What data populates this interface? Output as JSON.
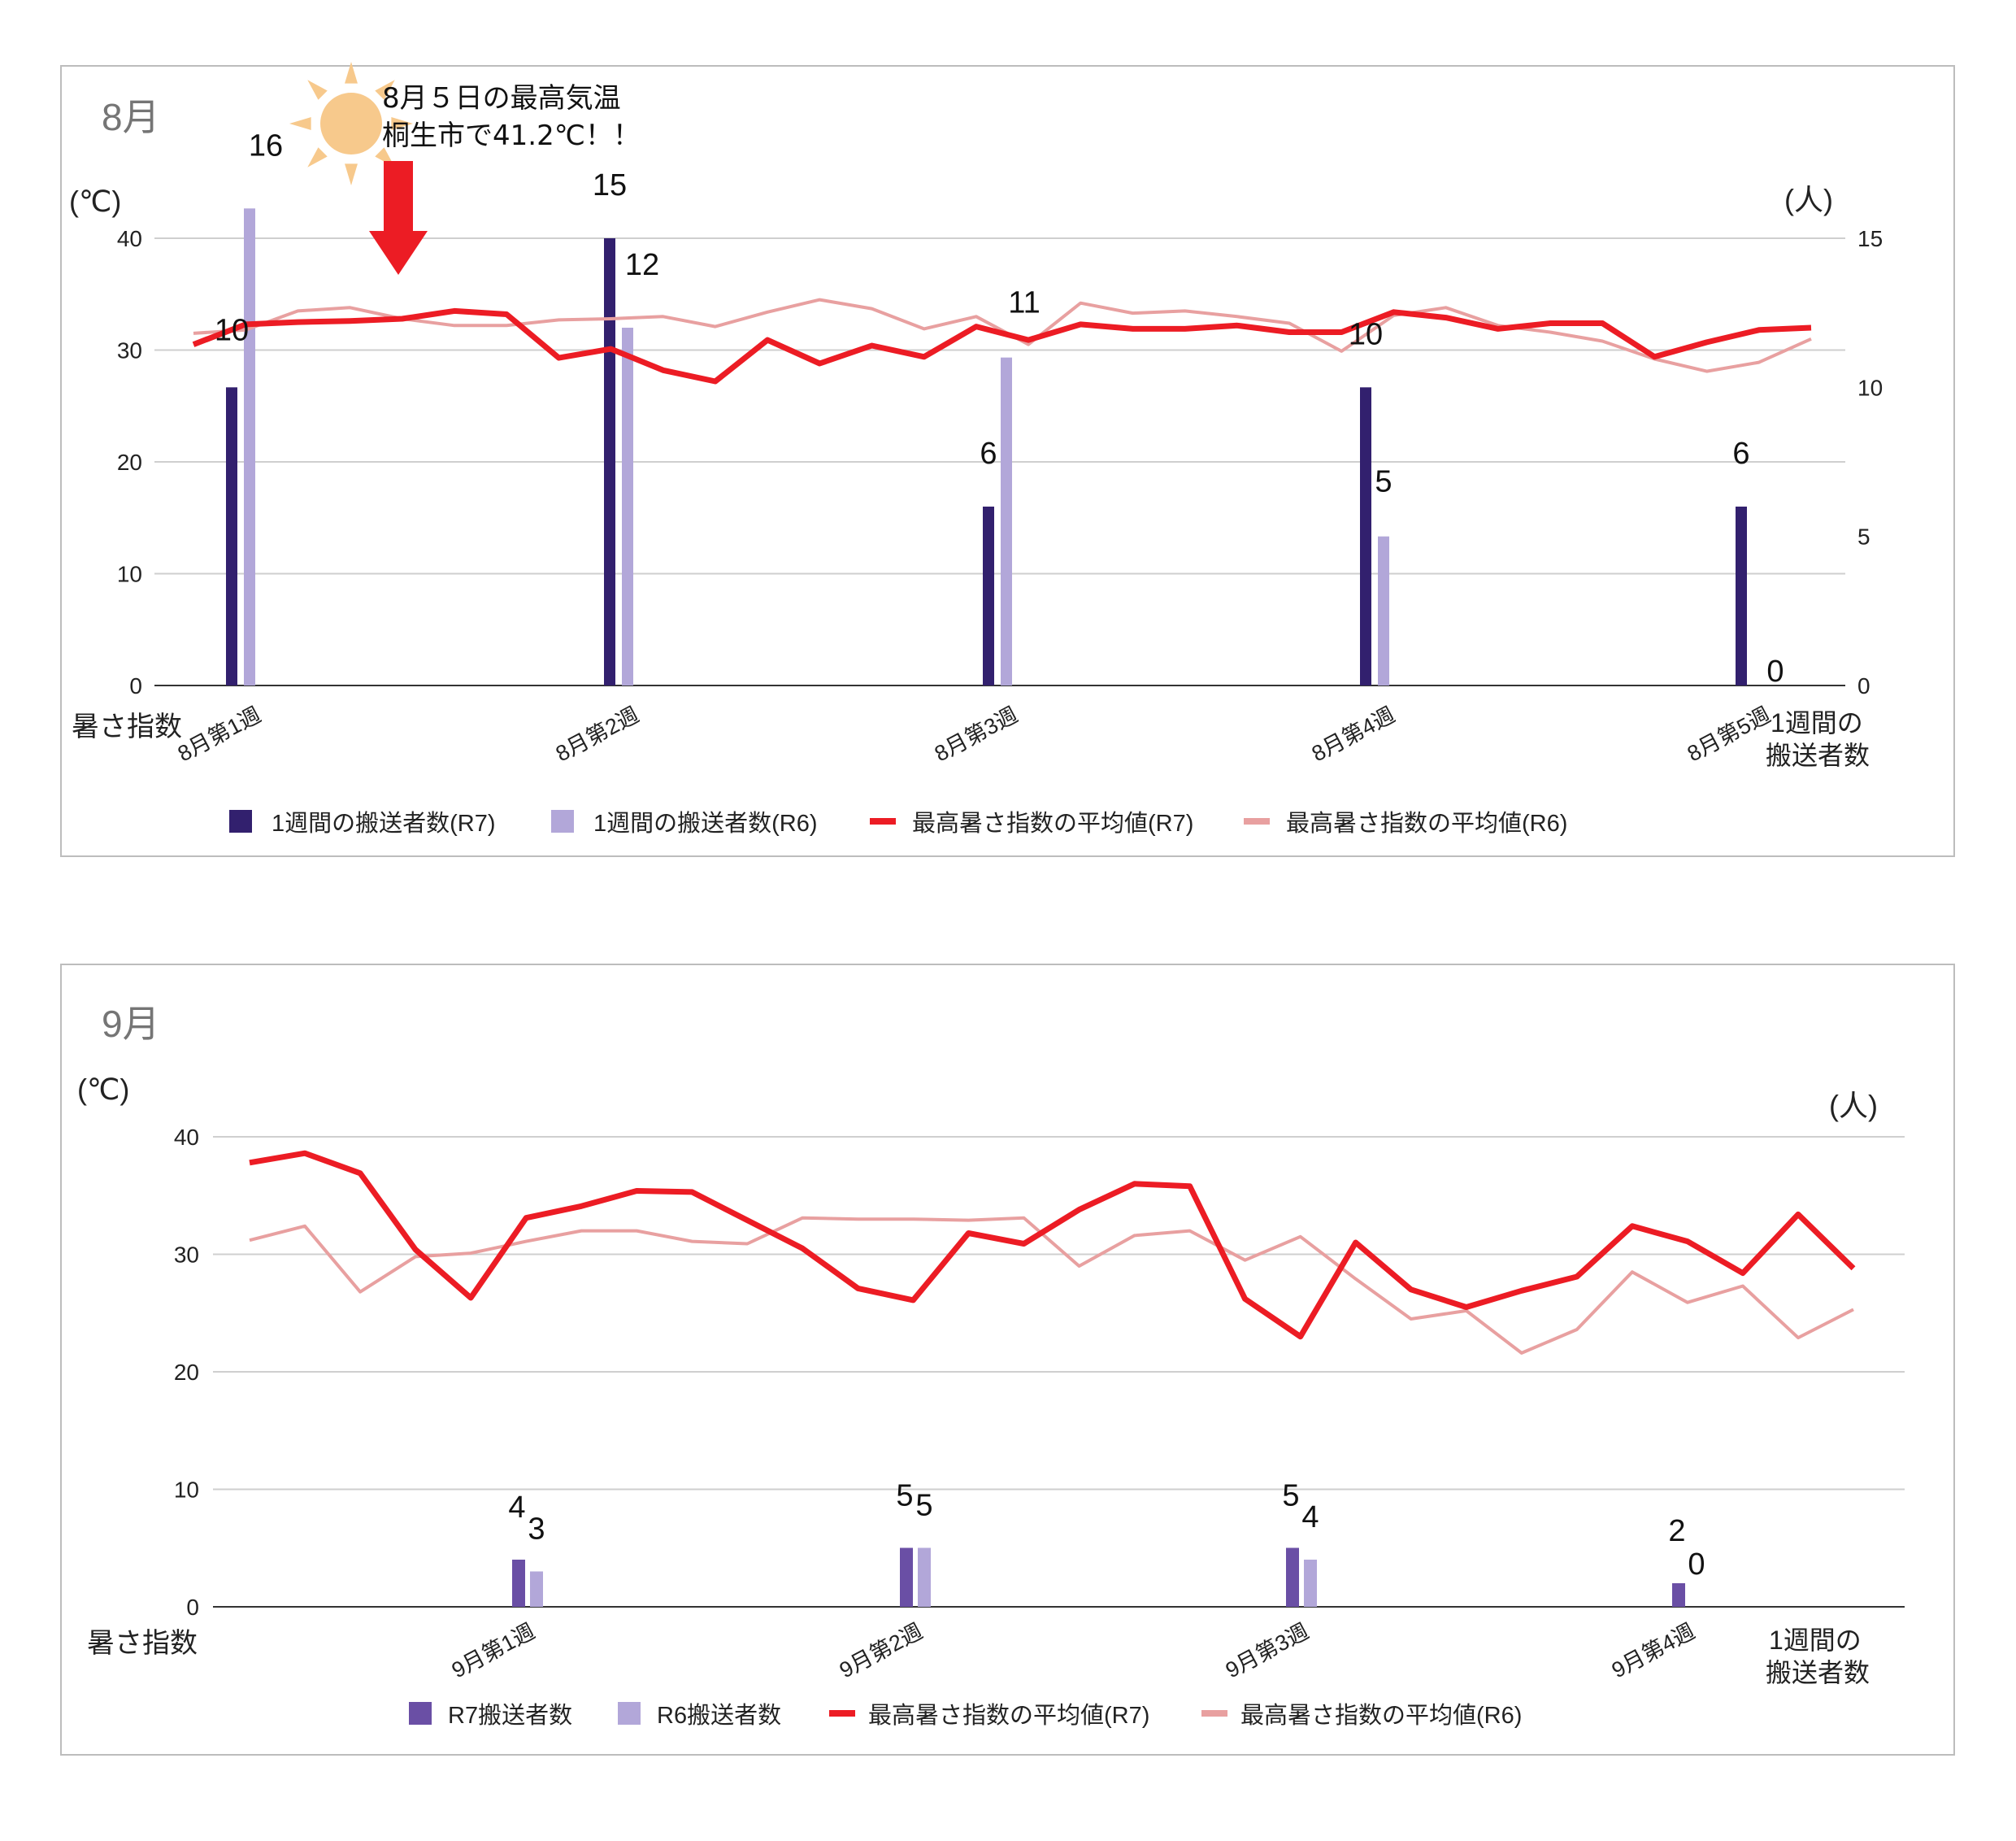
{
  "chart_data": [
    {
      "type": "bar",
      "title": "8月",
      "annotation": {
        "line1": "8月５日の最高気温",
        "line2": "桐生市で41.2℃！！"
      },
      "y_left": {
        "unit": "(℃)",
        "label": "暑さ指数",
        "ylim": [
          0,
          40
        ],
        "ticks": [
          0,
          10,
          20,
          30,
          40
        ]
      },
      "y_right": {
        "unit": "(人)",
        "label_line1": "1週間の",
        "label_line2": "搬送者数",
        "ylim": [
          0,
          15
        ],
        "ticks": [
          0,
          5,
          10,
          15
        ]
      },
      "categories": [
        "8月第1週",
        "8月第2週",
        "8月第3週",
        "8月第4週",
        "8月第5週"
      ],
      "bars": [
        {
          "name": "1週間の搬送者数(R7)",
          "color": "#32206e",
          "values": [
            10,
            15,
            6,
            10,
            6
          ]
        },
        {
          "name": "1週間の搬送者数(R6)",
          "color": "#b2a7d9",
          "values": [
            16,
            12,
            11,
            5,
            0
          ]
        }
      ],
      "lines": [
        {
          "name": "最高暑さ指数の平均値(R7)",
          "color": "#ec1c24",
          "values": [
            30.5,
            32.3,
            32.5,
            32.6,
            32.8,
            33.5,
            33.2,
            29.3,
            30.1,
            28.2,
            27.2,
            30.9,
            28.8,
            30.4,
            29.4,
            32.1,
            30.9,
            32.3,
            31.9,
            31.9,
            32.2,
            31.6,
            31.6,
            33.4,
            32.9,
            31.9,
            32.4,
            32.4,
            29.4,
            30.7,
            31.8,
            32.0
          ]
        },
        {
          "name": "最高暑さ指数の平均値(R6)",
          "color": "#e8a0a0",
          "values": [
            31.5,
            31.8,
            33.5,
            33.8,
            32.8,
            32.2,
            32.2,
            32.7,
            32.8,
            33.0,
            32.1,
            33.4,
            34.5,
            33.7,
            31.9,
            33.0,
            30.5,
            34.2,
            33.3,
            33.5,
            33.0,
            32.4,
            29.9,
            33.1,
            33.8,
            32.2,
            31.6,
            30.8,
            29.2,
            28.1,
            28.9,
            31.0
          ]
        }
      ]
    },
    {
      "type": "bar",
      "title": "9月",
      "y_left": {
        "unit": "(℃)",
        "label": "暑さ指数",
        "ylim": [
          0,
          40
        ],
        "ticks": [
          0,
          10,
          20,
          30,
          40
        ]
      },
      "y_right": {
        "unit": "(人)",
        "label_line1": "1週間の",
        "label_line2": "搬送者数"
      },
      "categories": [
        "9月第1週",
        "9月第2週",
        "9月第3週",
        "9月第4週"
      ],
      "bars": [
        {
          "name": "R7搬送者数",
          "color": "#6a4fa5",
          "values": [
            4,
            5,
            5,
            2
          ]
        },
        {
          "name": "R6搬送者数",
          "color": "#b2a7d9",
          "values": [
            3,
            5,
            4,
            0
          ]
        }
      ],
      "lines": [
        {
          "name": "最高暑さ指数の平均値(R7)",
          "color": "#ec1c24",
          "values": [
            37.8,
            38.6,
            36.9,
            30.4,
            26.3,
            33.1,
            34.1,
            35.4,
            35.3,
            32.9,
            30.5,
            27.1,
            26.1,
            31.8,
            30.9,
            33.8,
            36.0,
            35.8,
            26.2,
            23.0,
            31.0,
            27.0,
            25.5,
            26.9,
            28.1,
            32.4,
            31.1,
            28.4,
            33.4,
            28.8
          ]
        },
        {
          "name": "最高暑さ指数の平均値(R6)",
          "color": "#e8a0a0",
          "values": [
            31.2,
            32.4,
            26.8,
            29.8,
            30.1,
            31.1,
            32.0,
            32.0,
            31.1,
            30.9,
            33.1,
            33.0,
            33.0,
            32.9,
            33.1,
            29.0,
            31.6,
            32.0,
            29.5,
            31.5,
            27.9,
            24.5,
            25.2,
            21.6,
            23.6,
            28.5,
            25.9,
            27.3,
            22.9,
            25.3
          ]
        }
      ]
    }
  ]
}
